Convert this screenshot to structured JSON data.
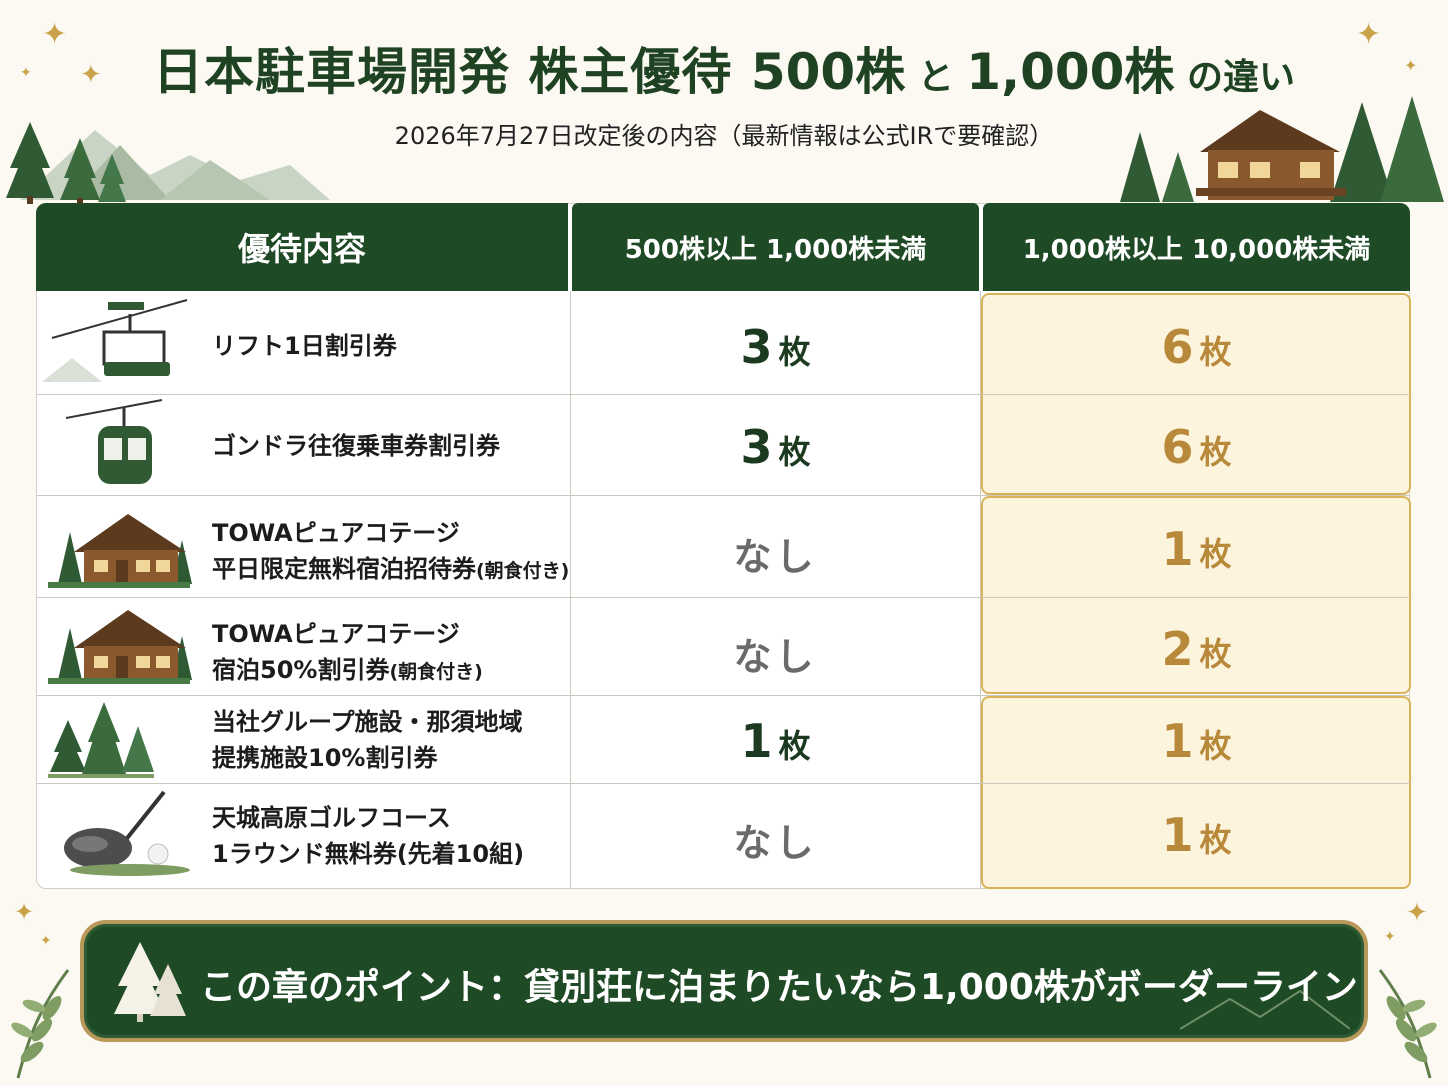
{
  "title": {
    "part1": "日本駐車場開発 株主優待 ",
    "part2": "500株",
    "part3": " と ",
    "part4": "1,000株",
    "part5": " の違い"
  },
  "subtitle": "2026年7月27日改定後の内容（最新情報は公式IRで要確認）",
  "table": {
    "headers": [
      "優待内容",
      "500株以上 1,000株未満",
      "1,000株以上 10,000株未満"
    ],
    "rows": [
      {
        "icon": "ski-lift-icon",
        "label_line1": "リフト1日割引券",
        "label_line2": "",
        "mid_num": "3",
        "mid_unit": "枚",
        "right_num": "6",
        "right_unit": "枚"
      },
      {
        "icon": "gondola-icon",
        "label_line1": "ゴンドラ往復乗車券割引券",
        "label_line2": "",
        "mid_num": "3",
        "mid_unit": "枚",
        "right_num": "6",
        "right_unit": "枚"
      },
      {
        "icon": "cottage-icon",
        "label_line1": "TOWAピュアコテージ",
        "label_line2": "平日限定無料宿泊招待券",
        "label_line2_small": "(朝食付き)",
        "mid_none": "なし",
        "right_num": "1",
        "right_unit": "枚"
      },
      {
        "icon": "cottage-icon",
        "label_line1": "TOWAピュアコテージ",
        "label_line2": "宿泊50%割引券",
        "label_line2_small": "(朝食付き)",
        "mid_none": "なし",
        "right_num": "2",
        "right_unit": "枚"
      },
      {
        "icon": "trees-icon",
        "label_line1": "当社グループ施設・那須地域",
        "label_line2": "提携施設10%割引券",
        "mid_num": "1",
        "mid_unit": "枚",
        "right_num": "1",
        "right_unit": "枚"
      },
      {
        "icon": "golf-club-icon",
        "label_line1": "天城高原ゴルフコース",
        "label_line2": "1ラウンド無料券(先着10組)",
        "mid_none": "なし",
        "right_num": "1",
        "right_unit": "枚"
      }
    ]
  },
  "banner": {
    "text": "この章のポイント：貸別荘に泊まりたいなら1,000株がボーダーライン",
    "icon": "snowy-tree-icon"
  },
  "colors": {
    "dark_green": "#1f4a26",
    "gold": "#b8893a",
    "gold_bg": "#fdf4de"
  }
}
